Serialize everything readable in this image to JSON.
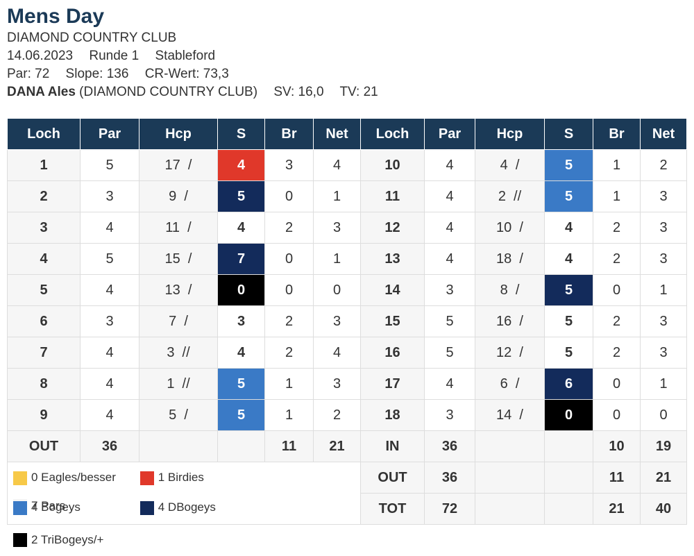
{
  "header": {
    "title": "Mens Day",
    "club": "DIAMOND COUNTRY CLUB",
    "date": "14.06.2023",
    "round": "Runde 1",
    "format": "Stableford",
    "par": "Par: 72",
    "slope": "Slope: 136",
    "cr": "CR-Wert: 73,3",
    "player_name": "DANA Ales",
    "player_club": "(DIAMOND COUNTRY CLUB)",
    "sv": "SV: 16,0",
    "tv": "TV: 21"
  },
  "columns": [
    "Loch",
    "Par",
    "Hcp",
    "S",
    "Br",
    "Net",
    "Loch",
    "Par",
    "Hcp",
    "S",
    "Br",
    "Net"
  ],
  "front": [
    {
      "loch": "1",
      "par": "5",
      "hcp": "17  /",
      "s": "4",
      "br": "3",
      "net": "4",
      "color": "red"
    },
    {
      "loch": "2",
      "par": "3",
      "hcp": "9  /",
      "s": "5",
      "br": "0",
      "net": "1",
      "color": "navy"
    },
    {
      "loch": "3",
      "par": "4",
      "hcp": "11  /",
      "s": "4",
      "br": "2",
      "net": "3",
      "color": ""
    },
    {
      "loch": "4",
      "par": "5",
      "hcp": "15  /",
      "s": "7",
      "br": "0",
      "net": "1",
      "color": "navy"
    },
    {
      "loch": "5",
      "par": "4",
      "hcp": "13  /",
      "s": "0",
      "br": "0",
      "net": "0",
      "color": "black"
    },
    {
      "loch": "6",
      "par": "3",
      "hcp": "7  /",
      "s": "3",
      "br": "2",
      "net": "3",
      "color": ""
    },
    {
      "loch": "7",
      "par": "4",
      "hcp": "3  //",
      "s": "4",
      "br": "2",
      "net": "4",
      "color": ""
    },
    {
      "loch": "8",
      "par": "4",
      "hcp": "1  //",
      "s": "5",
      "br": "1",
      "net": "3",
      "color": "blue"
    },
    {
      "loch": "9",
      "par": "4",
      "hcp": "5  /",
      "s": "5",
      "br": "1",
      "net": "2",
      "color": "blue"
    }
  ],
  "back": [
    {
      "loch": "10",
      "par": "4",
      "hcp": "4  /",
      "s": "5",
      "br": "1",
      "net": "2",
      "color": "blue"
    },
    {
      "loch": "11",
      "par": "4",
      "hcp": "2  //",
      "s": "5",
      "br": "1",
      "net": "3",
      "color": "blue"
    },
    {
      "loch": "12",
      "par": "4",
      "hcp": "10  /",
      "s": "4",
      "br": "2",
      "net": "3",
      "color": ""
    },
    {
      "loch": "13",
      "par": "4",
      "hcp": "18  /",
      "s": "4",
      "br": "2",
      "net": "3",
      "color": ""
    },
    {
      "loch": "14",
      "par": "3",
      "hcp": "8  /",
      "s": "5",
      "br": "0",
      "net": "1",
      "color": "navy"
    },
    {
      "loch": "15",
      "par": "5",
      "hcp": "16  /",
      "s": "5",
      "br": "2",
      "net": "3",
      "color": ""
    },
    {
      "loch": "16",
      "par": "5",
      "hcp": "12  /",
      "s": "5",
      "br": "2",
      "net": "3",
      "color": ""
    },
    {
      "loch": "17",
      "par": "4",
      "hcp": "6  /",
      "s": "6",
      "br": "0",
      "net": "1",
      "color": "navy"
    },
    {
      "loch": "18",
      "par": "3",
      "hcp": "14  /",
      "s": "0",
      "br": "0",
      "net": "0",
      "color": "black"
    }
  ],
  "totals": {
    "out": {
      "label": "OUT",
      "par": "36",
      "br": "11",
      "net": "21"
    },
    "in": {
      "label": "IN",
      "par": "36",
      "br": "10",
      "net": "19"
    },
    "out2": {
      "label": "OUT",
      "par": "36",
      "br": "11",
      "net": "21"
    },
    "tot": {
      "label": "TOT",
      "par": "72",
      "br": "21",
      "net": "40"
    }
  },
  "legend": [
    {
      "label": "0 Eagles/besser",
      "color": "#f7c948"
    },
    {
      "label": "1 Birdies",
      "color": "#e0382a"
    },
    {
      "label": "7 Pars",
      "color": "#f4f4f4"
    },
    {
      "label": "4 Bogeys",
      "color": "#3a7ac6"
    },
    {
      "label": "4 DBogeys",
      "color": "#132b5b"
    },
    {
      "label": "2 TriBogeys/+",
      "color": "#000000"
    }
  ]
}
